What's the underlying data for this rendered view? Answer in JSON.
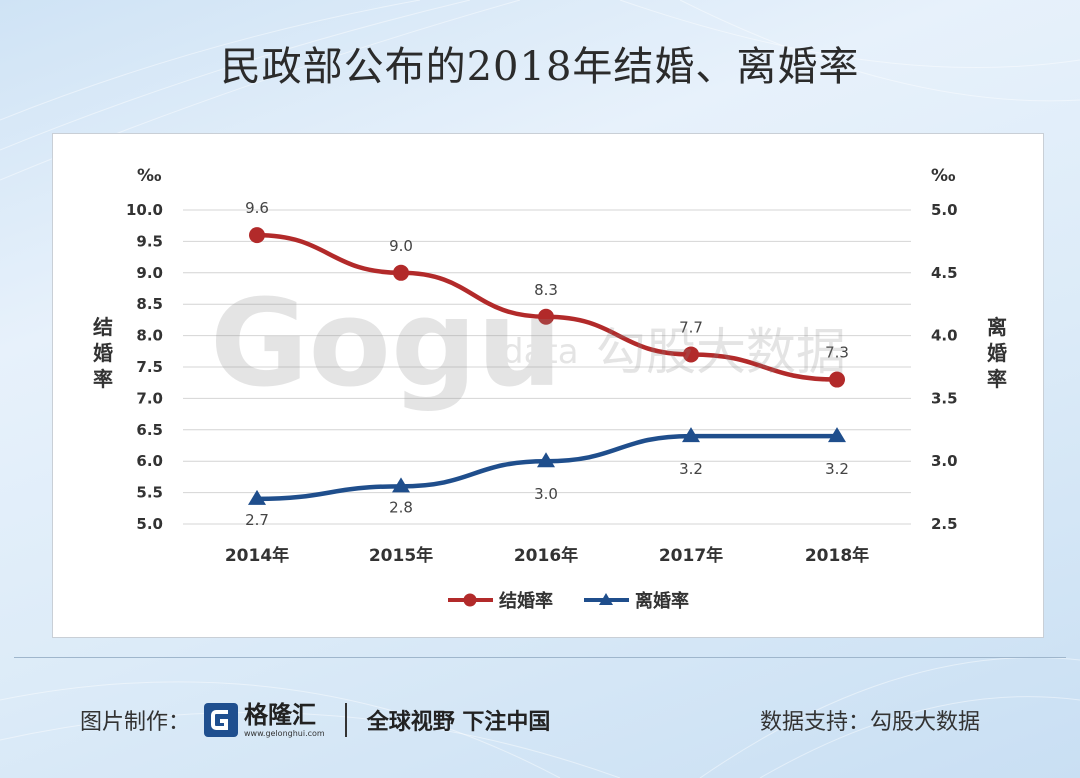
{
  "title": "民政部公布的2018年结婚、离婚率",
  "chart_data": {
    "type": "line",
    "categories": [
      "2014年",
      "2015年",
      "2016年",
      "2017年",
      "2018年"
    ],
    "series": [
      {
        "name": "结婚率",
        "axis": "left",
        "values": [
          9.6,
          9.0,
          8.3,
          7.7,
          7.3
        ],
        "labels": [
          "9.6",
          "9.0",
          "8.3",
          "7.7",
          "7.3"
        ],
        "color": "#b22a2a"
      },
      {
        "name": "离婚率",
        "axis": "right",
        "values": [
          2.7,
          2.8,
          3.0,
          3.2,
          3.2
        ],
        "labels": [
          "2.7",
          "2.8",
          "3.0",
          "3.2",
          "3.2"
        ],
        "color": "#1f4e8c"
      }
    ],
    "y_left": {
      "label": "结婚率",
      "unit": "‰",
      "range": [
        5.0,
        10.0
      ],
      "ticks": [
        "5.0",
        "5.5",
        "6.0",
        "6.5",
        "7.0",
        "7.5",
        "8.0",
        "8.5",
        "9.0",
        "9.5",
        "10.0"
      ]
    },
    "y_right": {
      "label": "离婚率",
      "unit": "‰",
      "range": [
        2.5,
        5.0
      ],
      "ticks": [
        "2.5",
        "3.0",
        "3.5",
        "4.0",
        "4.5",
        "5.0"
      ]
    },
    "grid": true,
    "legend": "bottom-center"
  },
  "watermark": {
    "logo_text": "Gogu",
    "sub_text": "data",
    "cn_text": "勾股大数据"
  },
  "footer": {
    "credit_label": "图片制作：",
    "brand_name": "格隆汇",
    "brand_url": "www.gelonghui.com",
    "slogan": "全球视野 下注中国",
    "source": "数据支持：勾股大数据"
  },
  "colors": {
    "marriage": "#b22a2a",
    "divorce": "#1f4e8c",
    "grid": "#d4d4d4",
    "brand": "#1f4f8f"
  }
}
